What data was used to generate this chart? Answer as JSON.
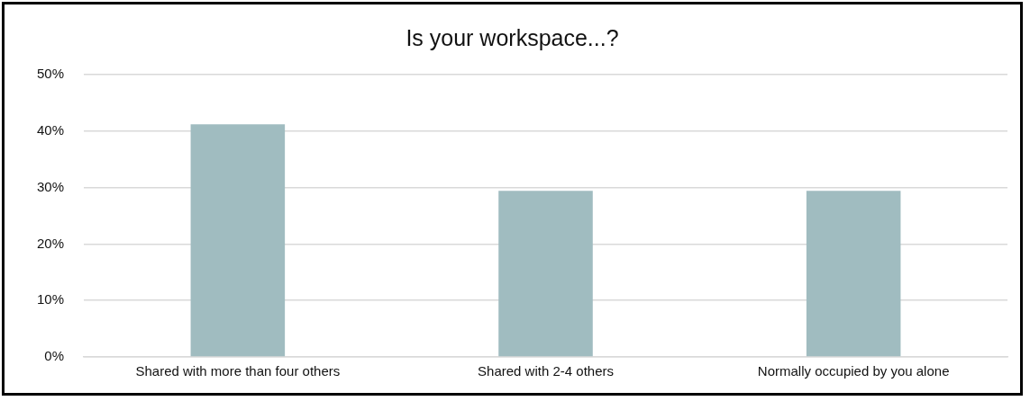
{
  "chart_data": {
    "type": "bar",
    "title": "Is your workspace...?",
    "categories": [
      "Shared with more than four others",
      "Shared with 2-4 others",
      "Normally occupied by you alone"
    ],
    "values": [
      41.2,
      29.4,
      29.4
    ],
    "color": "#a0bcc0",
    "ylim": [
      0,
      50
    ],
    "yticks": [
      {
        "value": 0,
        "label": "0%"
      },
      {
        "value": 10,
        "label": "10%"
      },
      {
        "value": 20,
        "label": "20%"
      },
      {
        "value": 30,
        "label": "30%"
      },
      {
        "value": 40,
        "label": "40%"
      },
      {
        "value": 50,
        "label": "50%"
      }
    ],
    "grid": "y",
    "legend": false
  }
}
